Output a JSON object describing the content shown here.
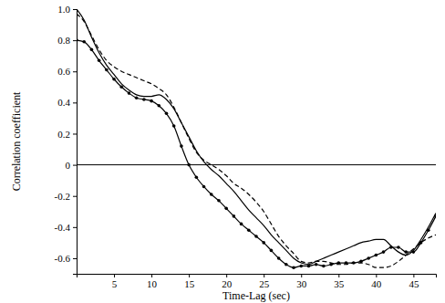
{
  "chart_data": {
    "type": "line",
    "x_label": "Time-Lag (sec)",
    "y_label": "Correlation coefficient",
    "x": [
      0,
      1,
      2,
      3,
      4,
      5,
      6,
      7,
      8,
      9,
      10,
      11,
      12,
      13,
      14,
      15,
      16,
      17,
      18,
      19,
      20,
      21,
      22,
      23,
      24,
      25,
      26,
      27,
      28,
      29,
      30,
      31,
      32,
      33,
      34,
      35,
      36,
      37,
      38,
      39,
      40,
      41,
      42,
      43,
      44,
      45,
      46,
      47,
      48
    ],
    "series": [
      {
        "color": "#000000",
        "line_style": "solid",
        "marker": "circle",
        "values": [
          0.8,
          0.79,
          0.74,
          0.67,
          0.61,
          0.55,
          0.5,
          0.46,
          0.43,
          0.42,
          0.41,
          0.38,
          0.33,
          0.25,
          0.12,
          0.0,
          -0.08,
          -0.14,
          -0.19,
          -0.23,
          -0.28,
          -0.33,
          -0.38,
          -0.42,
          -0.46,
          -0.5,
          -0.55,
          -0.6,
          -0.64,
          -0.66,
          -0.65,
          -0.65,
          -0.64,
          -0.65,
          -0.64,
          -0.63,
          -0.63,
          -0.63,
          -0.62,
          -0.6,
          -0.58,
          -0.56,
          -0.53,
          -0.53,
          -0.56,
          -0.56,
          -0.5,
          -0.42,
          -0.33
        ]
      },
      {
        "color": "#000000",
        "line_style": "solid",
        "values": [
          1.0,
          0.93,
          0.82,
          0.72,
          0.64,
          0.58,
          0.52,
          0.48,
          0.45,
          0.44,
          0.44,
          0.45,
          0.42,
          0.36,
          0.27,
          0.18,
          0.09,
          0.02,
          -0.03,
          -0.07,
          -0.12,
          -0.17,
          -0.23,
          -0.29,
          -0.34,
          -0.39,
          -0.45,
          -0.5,
          -0.55,
          -0.6,
          -0.63,
          -0.64,
          -0.62,
          -0.6,
          -0.58,
          -0.56,
          -0.54,
          -0.52,
          -0.5,
          -0.49,
          -0.48,
          -0.48,
          -0.52,
          -0.56,
          -0.58,
          -0.55,
          -0.48,
          -0.4,
          -0.31
        ]
      },
      {
        "color": "#000000",
        "line_style": "dashed",
        "values": [
          0.97,
          0.92,
          0.83,
          0.74,
          0.67,
          0.63,
          0.6,
          0.58,
          0.56,
          0.54,
          0.52,
          0.49,
          0.45,
          0.37,
          0.27,
          0.17,
          0.08,
          0.03,
          0.0,
          -0.03,
          -0.07,
          -0.12,
          -0.15,
          -0.19,
          -0.24,
          -0.3,
          -0.38,
          -0.46,
          -0.52,
          -0.57,
          -0.62,
          -0.63,
          -0.62,
          -0.62,
          -0.63,
          -0.64,
          -0.64,
          -0.63,
          -0.63,
          -0.64,
          -0.66,
          -0.66,
          -0.65,
          -0.62,
          -0.58,
          -0.54,
          -0.5,
          -0.47,
          -0.45
        ]
      }
    ],
    "xlim": [
      0,
      48
    ],
    "xticks": [
      5,
      10,
      15,
      20,
      25,
      30,
      35,
      40,
      45
    ],
    "ylim": [
      -0.7,
      1.0
    ],
    "yticks": [
      {
        "value": 1,
        "label": "1.0"
      },
      0.8,
      0.6,
      0.4,
      0.2,
      0,
      -0.2,
      -0.4,
      -0.6
    ]
  }
}
